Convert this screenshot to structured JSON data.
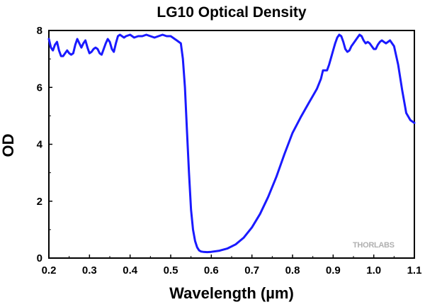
{
  "chart_data": {
    "type": "line",
    "title": "LG10 Optical Density",
    "xlabel": "Wavelength (µm)",
    "ylabel": "OD",
    "xlim": [
      0.2,
      1.1
    ],
    "ylim": [
      0,
      8
    ],
    "xticks": [
      "0.2",
      "0.3",
      "0.4",
      "0.5",
      "0.6",
      "0.7",
      "0.8",
      "0.9",
      "1.0",
      "1.1"
    ],
    "yticks": [
      "0",
      "2",
      "4",
      "6",
      "8"
    ],
    "grid": false,
    "legend": "none",
    "watermark": "THORLABS",
    "line_color": "#1a1aff",
    "series": [
      {
        "x": [
          0.2,
          0.205,
          0.21,
          0.215,
          0.22,
          0.225,
          0.23,
          0.235,
          0.24,
          0.245,
          0.25,
          0.255,
          0.26,
          0.265,
          0.27,
          0.275,
          0.28,
          0.285,
          0.29,
          0.295,
          0.3,
          0.305,
          0.31,
          0.315,
          0.32,
          0.325,
          0.33,
          0.335,
          0.34,
          0.345,
          0.35,
          0.355,
          0.36,
          0.365,
          0.37,
          0.375,
          0.38,
          0.385,
          0.39,
          0.4,
          0.41,
          0.42,
          0.43,
          0.44,
          0.45,
          0.46,
          0.47,
          0.48,
          0.49,
          0.5,
          0.505,
          0.51,
          0.515,
          0.52,
          0.525,
          0.53,
          0.535,
          0.54,
          0.545,
          0.55,
          0.555,
          0.56,
          0.565,
          0.57,
          0.575,
          0.58,
          0.59,
          0.6,
          0.62,
          0.64,
          0.66,
          0.68,
          0.7,
          0.72,
          0.74,
          0.76,
          0.78,
          0.8,
          0.82,
          0.84,
          0.85,
          0.86,
          0.87,
          0.875,
          0.88,
          0.885,
          0.89,
          0.895,
          0.9,
          0.905,
          0.91,
          0.915,
          0.92,
          0.925,
          0.93,
          0.935,
          0.94,
          0.945,
          0.95,
          0.955,
          0.96,
          0.965,
          0.97,
          0.975,
          0.98,
          0.985,
          0.99,
          0.995,
          1.0,
          1.005,
          1.01,
          1.015,
          1.02,
          1.025,
          1.03,
          1.035,
          1.04,
          1.045,
          1.05,
          1.06,
          1.07,
          1.08,
          1.09,
          1.1
        ],
        "y": [
          7.7,
          7.4,
          7.3,
          7.5,
          7.6,
          7.3,
          7.1,
          7.1,
          7.2,
          7.3,
          7.2,
          7.15,
          7.2,
          7.5,
          7.7,
          7.55,
          7.4,
          7.55,
          7.65,
          7.4,
          7.2,
          7.25,
          7.35,
          7.4,
          7.35,
          7.2,
          7.15,
          7.35,
          7.55,
          7.7,
          7.6,
          7.35,
          7.25,
          7.55,
          7.8,
          7.85,
          7.8,
          7.75,
          7.8,
          7.85,
          7.75,
          7.8,
          7.8,
          7.85,
          7.8,
          7.75,
          7.8,
          7.85,
          7.8,
          7.8,
          7.75,
          7.7,
          7.65,
          7.6,
          7.55,
          7.0,
          6.0,
          4.5,
          3.0,
          1.7,
          1.0,
          0.6,
          0.38,
          0.27,
          0.23,
          0.22,
          0.21,
          0.22,
          0.26,
          0.34,
          0.48,
          0.72,
          1.08,
          1.55,
          2.15,
          2.85,
          3.65,
          4.4,
          4.95,
          5.45,
          5.7,
          5.95,
          6.3,
          6.6,
          6.6,
          6.6,
          6.8,
          7.05,
          7.3,
          7.55,
          7.75,
          7.85,
          7.8,
          7.6,
          7.35,
          7.25,
          7.3,
          7.45,
          7.55,
          7.65,
          7.75,
          7.85,
          7.8,
          7.65,
          7.55,
          7.6,
          7.55,
          7.45,
          7.35,
          7.35,
          7.5,
          7.6,
          7.65,
          7.6,
          7.55,
          7.6,
          7.65,
          7.55,
          7.45,
          6.8,
          5.9,
          5.1,
          4.85,
          4.75
        ]
      }
    ]
  }
}
